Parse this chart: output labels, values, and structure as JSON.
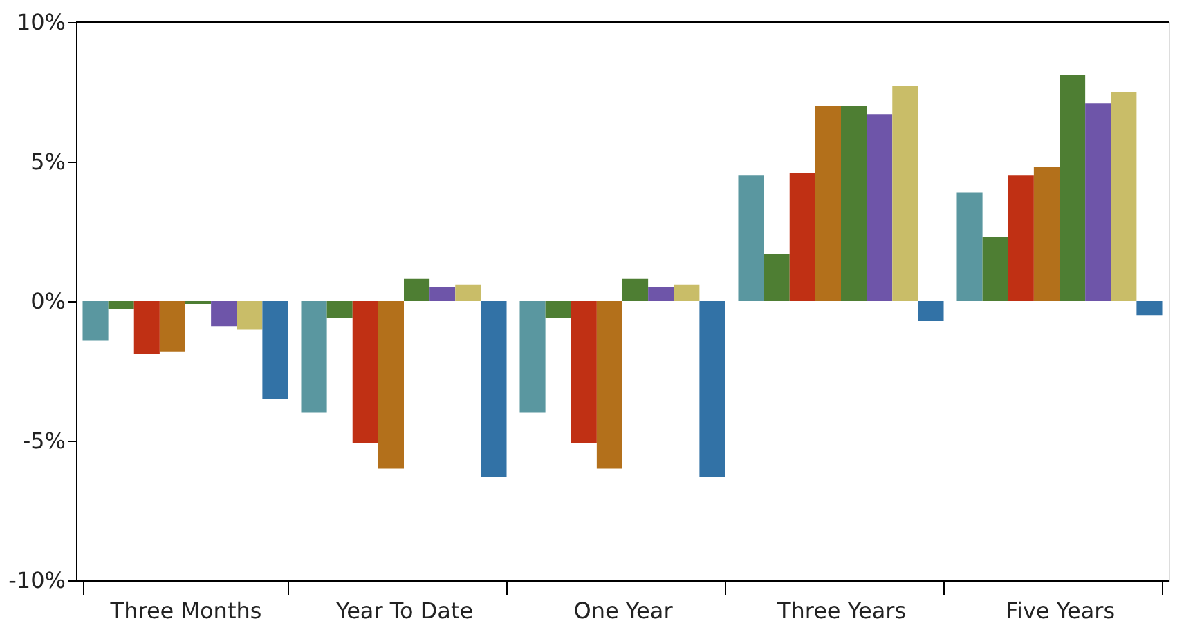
{
  "chart_data": {
    "type": "bar",
    "categories": [
      "Three Months",
      "Year To Date",
      "One Year",
      "Three Years",
      "Five Years"
    ],
    "series": [
      {
        "color": "#5a97a0",
        "values": [
          -1.4,
          -4.0,
          -4.0,
          4.5,
          3.9
        ]
      },
      {
        "color": "#4e7e33",
        "values": [
          -0.3,
          -0.6,
          -0.6,
          1.7,
          2.3
        ]
      },
      {
        "color": "#c03014",
        "values": [
          -1.9,
          -5.1,
          -5.1,
          4.6,
          4.5
        ]
      },
      {
        "color": "#b3701b",
        "values": [
          -1.8,
          -6.0,
          -6.0,
          7.0,
          4.8
        ]
      },
      {
        "color": "#4e7e33",
        "values": [
          -0.1,
          0.8,
          0.8,
          7.0,
          8.1
        ]
      },
      {
        "color": "#6e55a9",
        "values": [
          -0.9,
          0.5,
          0.5,
          6.7,
          7.1
        ]
      },
      {
        "color": "#c9bd68",
        "values": [
          -1.0,
          0.6,
          0.6,
          7.7,
          7.5
        ]
      },
      {
        "color": "#3272a6",
        "values": [
          -3.5,
          -6.3,
          -6.3,
          -0.7,
          -0.5
        ]
      }
    ],
    "ylim": [
      -10,
      10
    ],
    "yticks": [
      {
        "value": 10,
        "label": "10%"
      },
      {
        "value": 5,
        "label": "5%"
      },
      {
        "value": 0,
        "label": "0%"
      },
      {
        "value": -5,
        "label": "-5%"
      },
      {
        "value": -10,
        "label": "-10%"
      }
    ],
    "grid": false,
    "legend": false
  }
}
